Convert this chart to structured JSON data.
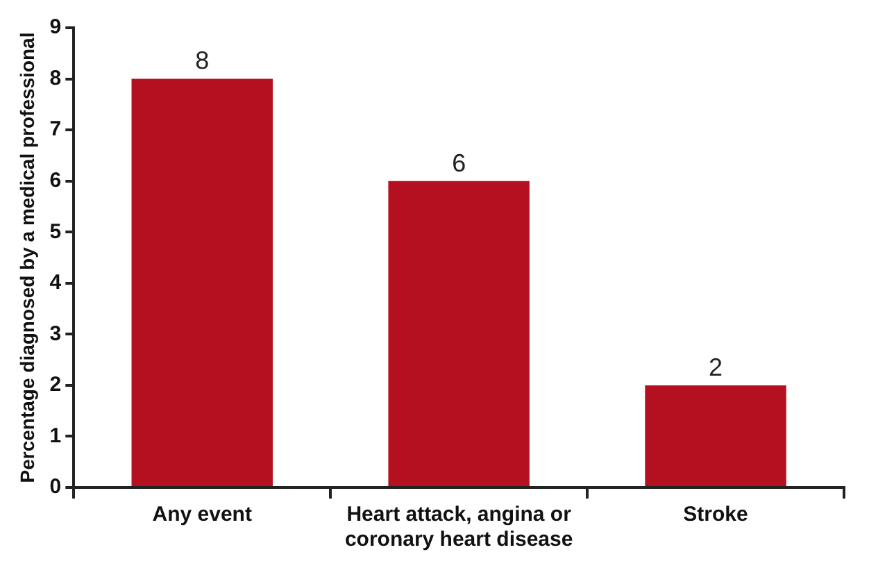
{
  "chart_data": {
    "type": "bar",
    "ylabel": "Percentage diagnosed by a medical professional",
    "categories": [
      "Any event",
      "Heart attack, angina or coronary heart disease",
      "Stroke"
    ],
    "values": [
      8,
      6,
      2
    ],
    "color": "#b5101f",
    "ylim": [
      0,
      9
    ],
    "yticks": [
      0,
      1,
      2,
      3,
      4,
      5,
      6,
      7,
      8,
      9
    ],
    "grid": false,
    "legend": false,
    "data_labels": true
  }
}
